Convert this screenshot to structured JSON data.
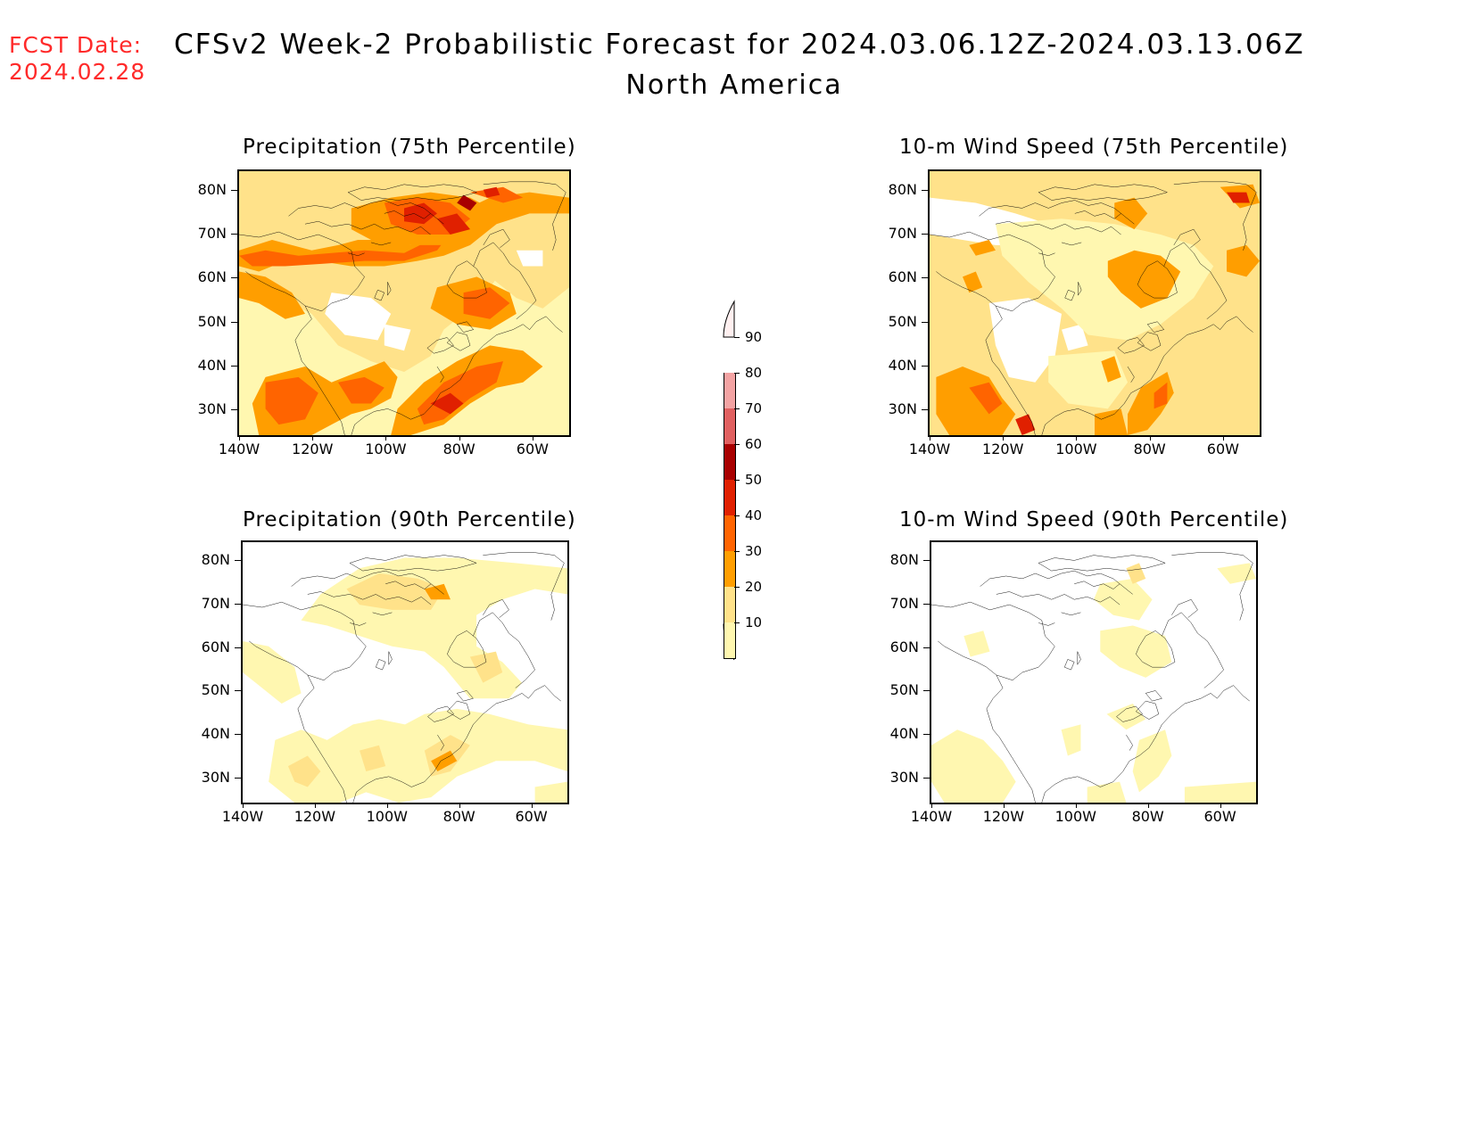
{
  "header": {
    "fcst_label": "FCST Date:",
    "fcst_date": "2024.02.28",
    "title": "CFSv2 Week-2 Probabilistic Forecast for 2024.03.06.12Z-2024.03.13.06Z",
    "subtitle": "North America"
  },
  "axes": {
    "lat_labels": [
      "80N",
      "70N",
      "60N",
      "50N",
      "40N",
      "30N"
    ],
    "lon_labels": [
      "140W",
      "120W",
      "100W",
      "80W",
      "60W"
    ]
  },
  "panels": [
    {
      "id": "precip75",
      "title": "Precipitation (75th Percentile)"
    },
    {
      "id": "wind75",
      "title": "10-m Wind Speed (75th Percentile)"
    },
    {
      "id": "precip90",
      "title": "Precipitation (90th Percentile)"
    },
    {
      "id": "wind90",
      "title": "10-m Wind Speed (90th Percentile)"
    }
  ],
  "colorbar": {
    "labels": [
      "90",
      "80",
      "70",
      "60",
      "50",
      "40",
      "30",
      "20",
      "10"
    ],
    "colors": [
      "#fde0e0",
      "#f3a3a3",
      "#e06060",
      "#a80000",
      "#e02000",
      "#ff6400",
      "#ff9e00",
      "#ffe28a",
      "#fff7b0"
    ]
  },
  "palette": {
    "p10": "#fff7b0",
    "p20": "#ffe28a",
    "p30": "#ff9e00",
    "p40": "#ff6400",
    "p50": "#e02000",
    "p60": "#a80000",
    "header_red": "#ff2a2a"
  }
}
